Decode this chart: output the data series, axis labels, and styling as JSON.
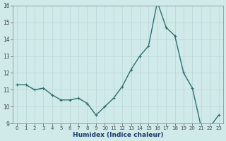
{
  "x": [
    0,
    1,
    2,
    3,
    4,
    5,
    6,
    7,
    8,
    9,
    10,
    11,
    12,
    13,
    14,
    15,
    16,
    17,
    18,
    19,
    20,
    21,
    22,
    23
  ],
  "y": [
    11.3,
    11.3,
    11.0,
    11.1,
    10.7,
    10.4,
    10.4,
    10.5,
    10.2,
    9.5,
    10.0,
    10.5,
    11.2,
    12.2,
    13.0,
    13.6,
    16.2,
    14.7,
    14.2,
    12.0,
    11.1,
    8.8,
    8.8,
    9.5
  ],
  "xlabel": "Humidex (Indice chaleur)",
  "ylim": [
    9,
    16
  ],
  "yticks": [
    9,
    10,
    11,
    12,
    13,
    14,
    15,
    16
  ],
  "xticks": [
    0,
    1,
    2,
    3,
    4,
    5,
    6,
    7,
    8,
    9,
    10,
    11,
    12,
    13,
    14,
    15,
    16,
    17,
    18,
    19,
    20,
    21,
    22,
    23
  ],
  "line_color": "#2d6e6e",
  "bg_color": "#d0eaea",
  "grid_color": "#b8d4d4",
  "markersize": 2.5,
  "linewidth": 1.0,
  "xlabel_color": "#1a3a6a",
  "xlabel_fontsize": 6.5,
  "tick_fontsize": 5.0,
  "ytick_fontsize": 5.5
}
